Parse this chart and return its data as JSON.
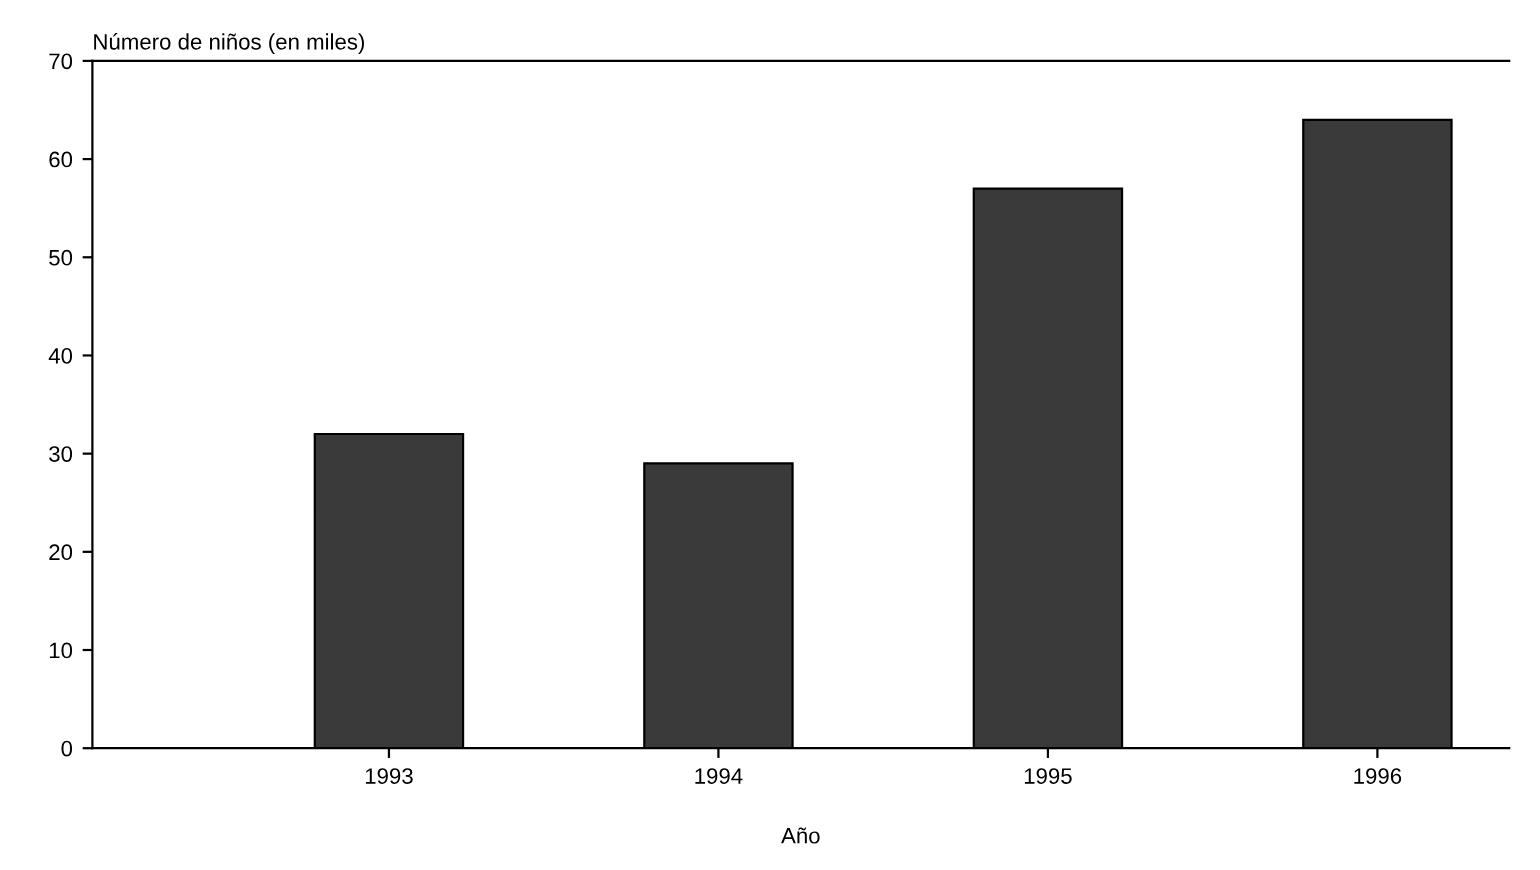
{
  "chart_data": {
    "type": "bar",
    "ylabel": "Número de niños (en miles)",
    "xlabel": "Año",
    "categories": [
      "1993",
      "1994",
      "1995",
      "1996"
    ],
    "values": [
      32,
      29,
      57,
      64
    ],
    "color": "#3a3a3a",
    "ylim": [
      0,
      70
    ],
    "yticks": [
      0,
      10,
      20,
      30,
      40,
      50,
      60,
      70
    ],
    "grid": false
  }
}
